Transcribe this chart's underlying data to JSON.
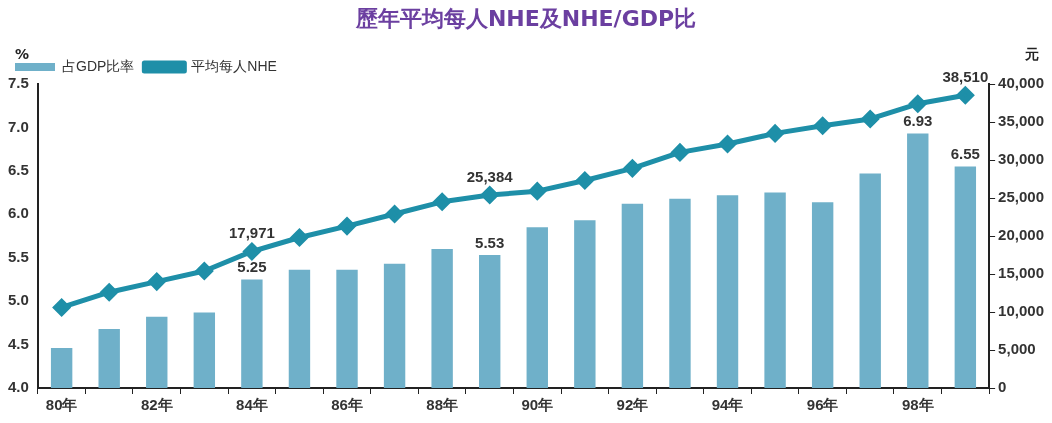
{
  "chart_data": {
    "type": "bar",
    "title": "歷年平均每人NHE及NHE/GDP比",
    "ylabel": "%",
    "y2label": "元",
    "categories": [
      "80年",
      null,
      "82年",
      null,
      "84年",
      null,
      "86年",
      null,
      "88年",
      null,
      "90年",
      null,
      "92年",
      null,
      "94年",
      null,
      "96年",
      null,
      "98年",
      null
    ],
    "series": [
      {
        "name": "占GDP比率",
        "color": "#6fb0c9",
        "values": [
          4.46,
          4.68,
          4.82,
          4.87,
          5.25,
          5.36,
          5.36,
          5.43,
          5.6,
          5.53,
          5.85,
          5.93,
          6.12,
          6.18,
          6.22,
          6.25,
          6.14,
          6.47,
          6.93,
          6.55
        ],
        "value_labels": [
          null,
          null,
          null,
          null,
          "5.25",
          null,
          null,
          null,
          null,
          "5.53",
          null,
          null,
          null,
          null,
          null,
          null,
          null,
          null,
          "6.93",
          "6.55"
        ]
      },
      {
        "name": "平均每人NHE",
        "type": "line",
        "axis": "y2",
        "color": "#1e8fa8",
        "marker": "diamond",
        "values": [
          10600,
          12600,
          14000,
          15400,
          17971,
          19800,
          21300,
          22900,
          24500,
          25384,
          25900,
          27300,
          28900,
          31000,
          32100,
          33500,
          34500,
          35400,
          37400,
          38510
        ],
        "value_labels": [
          null,
          null,
          null,
          null,
          "17,971",
          null,
          null,
          null,
          null,
          "25,384",
          null,
          null,
          null,
          null,
          null,
          null,
          null,
          null,
          null,
          "38,510"
        ]
      }
    ],
    "ylim": [
      4,
      7.5
    ],
    "yticks": [
      {
        "value": 4,
        "label": "4.0"
      },
      {
        "value": 4.5,
        "label": "4.5"
      },
      {
        "value": 5,
        "label": "5.0"
      },
      {
        "value": 5.5,
        "label": "5.5"
      },
      {
        "value": 6,
        "label": "6.0"
      },
      {
        "value": 6.5,
        "label": "6.5"
      },
      {
        "value": 7,
        "label": "7.0"
      },
      {
        "value": 7.5,
        "label": "7.5"
      }
    ],
    "y2lim": [
      0,
      40000
    ],
    "y2ticks": [
      0,
      {
        "value": 5000,
        "label": "5,000"
      },
      {
        "value": 10000,
        "label": "10,000"
      },
      {
        "value": 15000,
        "label": "15,000"
      },
      {
        "value": 20000,
        "label": "20,000"
      },
      {
        "value": 25000,
        "label": "25,000"
      },
      {
        "value": 30000,
        "label": "30,000"
      },
      {
        "value": 35000,
        "label": "35,000"
      },
      {
        "value": 40000,
        "label": "40,000"
      }
    ],
    "grid": false,
    "legend": "top left"
  }
}
